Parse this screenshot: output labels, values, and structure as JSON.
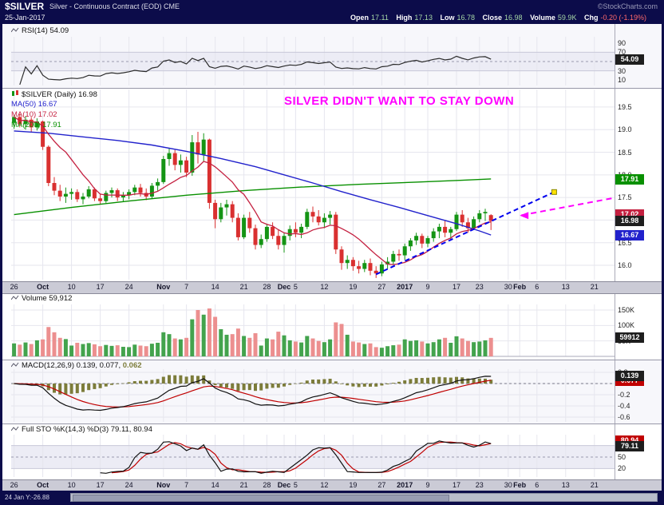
{
  "header": {
    "symbol": "$SILVER",
    "description": "Silver - Continuous Contract (EOD) CME",
    "credit": "©StockCharts.com",
    "date": "25-Jan-2017",
    "quote": {
      "open_label": "Open",
      "open": "17.11",
      "high_label": "High",
      "high": "17.13",
      "low_label": "Low",
      "low": "16.78",
      "close_label": "Close",
      "close": "16.98",
      "volume_label": "Volume",
      "volume": "59.9K",
      "chg_label": "Chg",
      "chg": "-0.20 (-1.19%)"
    }
  },
  "rsi": {
    "label": "RSI(14) 54.09",
    "value_box": "54.09"
  },
  "main": {
    "legend_symbol": "$SILVER (Daily) 16.98",
    "legend_ma50": "MA(50) 16.67",
    "legend_ma10": "MA(10) 17.02",
    "legend_ma200": "MA(200) 17.91",
    "annotation": "SILVER DIDN'T WANT TO STAY DOWN",
    "boxes": {
      "ma200": "17.91",
      "ma10": "17.02",
      "close": "16.98",
      "ma50": "16.67"
    }
  },
  "volume": {
    "label": "Volume 59,912",
    "value_box": "59912"
  },
  "macd": {
    "label_left": "MACD(12,26,9) 0.139, 0.077,",
    "label_hist": "0.062",
    "box_line": "0.139",
    "box_signal": "0.077"
  },
  "sto": {
    "label": "Full STO %K(14,3) %D(3) 79.11, 80.94",
    "box_k": "79.11",
    "box_d": "80.94"
  },
  "footer": {
    "readout": "24 Jan Y:-26.88"
  },
  "colors": {
    "navy": "#0C0C4A",
    "grid": "#E6E6EE",
    "band": "#ECECF5",
    "strip_bg": "#CBCBD6",
    "up": "#149414",
    "down": "#D93030",
    "vol_up": "#43A34D",
    "vol_down": "#EC8F8F",
    "ma10": "#C42040",
    "ma50": "#2222CC",
    "ma200": "#089000",
    "rsi": "#2B2B2B",
    "macd_line": "#111111",
    "macd_signal": "#C00000",
    "macd_hist": "#7C7C3A",
    "sto_k": "#111111",
    "sto_d": "#C00000",
    "trendline": "#0000EE",
    "handle": "#FFE000",
    "magenta": "#FF00FF",
    "box_dark": "#1E1E1E",
    "quote_value": "#A6D7A6",
    "quote_chg": "#FF6A6A"
  },
  "chart_data": {
    "type": "candlestick",
    "symbol": "$SILVER",
    "timeframe": "Daily",
    "title": "SILVER DIDN'T WANT TO STAY DOWN",
    "price_range": [
      15.7,
      19.85
    ],
    "axis_days_total": 105,
    "x_ticks": [
      {
        "label": "26",
        "day": 0,
        "bold": false
      },
      {
        "label": "Oct",
        "day": 5,
        "bold": true
      },
      {
        "label": "10",
        "day": 10,
        "bold": false
      },
      {
        "label": "17",
        "day": 15,
        "bold": false
      },
      {
        "label": "24",
        "day": 20,
        "bold": false
      },
      {
        "label": "Nov",
        "day": 26,
        "bold": true
      },
      {
        "label": "7",
        "day": 30,
        "bold": false
      },
      {
        "label": "14",
        "day": 35,
        "bold": false
      },
      {
        "label": "21",
        "day": 40,
        "bold": false
      },
      {
        "label": "28",
        "day": 44,
        "bold": false
      },
      {
        "label": "Dec",
        "day": 47,
        "bold": true
      },
      {
        "label": "5",
        "day": 49,
        "bold": false
      },
      {
        "label": "12",
        "day": 54,
        "bold": false
      },
      {
        "label": "19",
        "day": 59,
        "bold": false
      },
      {
        "label": "27",
        "day": 64,
        "bold": false
      },
      {
        "label": "2017",
        "day": 68,
        "bold": true
      },
      {
        "label": "9",
        "day": 72,
        "bold": false
      },
      {
        "label": "17",
        "day": 77,
        "bold": false
      },
      {
        "label": "23",
        "day": 81,
        "bold": false
      },
      {
        "label": "30",
        "day": 86,
        "bold": false
      },
      {
        "label": "Feb",
        "day": 88,
        "bold": true
      },
      {
        "label": "6",
        "day": 91,
        "bold": false
      },
      {
        "label": "13",
        "day": 96,
        "bold": false
      },
      {
        "label": "21",
        "day": 101,
        "bold": false
      }
    ],
    "price_ticks": [
      {
        "v": 19.5,
        "t": "19.5"
      },
      {
        "v": 19.0,
        "t": "19.0"
      },
      {
        "v": 18.5,
        "t": "18.5"
      },
      {
        "v": 18.0,
        "t": "18.0"
      },
      {
        "v": 17.5,
        "t": "17.5"
      },
      {
        "v": 17.0,
        "t": "17.0"
      },
      {
        "v": 16.5,
        "t": "16.5"
      },
      {
        "v": 16.0,
        "t": "16.0"
      }
    ],
    "rsi_ticks": [
      {
        "v": 90,
        "t": "90"
      },
      {
        "v": 70,
        "t": "70"
      },
      {
        "v": 50,
        "t": "50"
      },
      {
        "v": 30,
        "t": "30"
      },
      {
        "v": 10,
        "t": "10"
      }
    ],
    "vol_ticks": [
      {
        "v": 150,
        "t": "150K"
      },
      {
        "v": 100,
        "t": "100K"
      },
      {
        "v": 50,
        "t": "50K"
      }
    ],
    "macd_ticks": [
      {
        "v": 0.2,
        "t": "0.2"
      },
      {
        "v": 0.0,
        "t": "0.0"
      },
      {
        "v": -0.2,
        "t": "-0.2"
      },
      {
        "v": -0.4,
        "t": "-0.4"
      },
      {
        "v": -0.6,
        "t": "-0.6"
      }
    ],
    "sto_ticks": [
      {
        "v": 80,
        "t": "80"
      },
      {
        "v": 50,
        "t": "50"
      },
      {
        "v": 20,
        "t": "20"
      }
    ],
    "columns": [
      "date",
      "open",
      "high",
      "low",
      "close",
      "volume_k"
    ],
    "candles": [
      [
        "09-26",
        19.15,
        19.32,
        19.02,
        19.28,
        42
      ],
      [
        "09-27",
        19.28,
        19.35,
        19.05,
        19.12,
        38
      ],
      [
        "09-28",
        19.12,
        19.3,
        19.0,
        19.22,
        45
      ],
      [
        "09-29",
        19.22,
        19.28,
        18.95,
        19.05,
        40
      ],
      [
        "09-30",
        19.05,
        19.25,
        18.98,
        19.18,
        52
      ],
      [
        "10-03",
        19.18,
        19.2,
        18.55,
        18.62,
        55
      ],
      [
        "10-04",
        18.62,
        18.65,
        17.75,
        17.82,
        95
      ],
      [
        "10-05",
        17.82,
        17.95,
        17.55,
        17.65,
        78
      ],
      [
        "10-06",
        17.65,
        17.78,
        17.42,
        17.52,
        60
      ],
      [
        "10-07",
        17.52,
        17.72,
        17.38,
        17.58,
        56
      ],
      [
        "10-10",
        17.58,
        17.7,
        17.45,
        17.62,
        35
      ],
      [
        "10-11",
        17.62,
        17.68,
        17.4,
        17.46,
        44
      ],
      [
        "10-12",
        17.46,
        17.6,
        17.35,
        17.52,
        40
      ],
      [
        "10-13",
        17.52,
        17.75,
        17.48,
        17.68,
        43
      ],
      [
        "10-14",
        17.68,
        17.72,
        17.42,
        17.48,
        39
      ],
      [
        "10-17",
        17.48,
        17.58,
        17.35,
        17.42,
        33
      ],
      [
        "10-18",
        17.42,
        17.65,
        17.38,
        17.6,
        37
      ],
      [
        "10-19",
        17.6,
        17.72,
        17.5,
        17.66,
        34
      ],
      [
        "10-20",
        17.66,
        17.7,
        17.42,
        17.5,
        36
      ],
      [
        "10-21",
        17.5,
        17.62,
        17.4,
        17.55,
        31
      ],
      [
        "10-24",
        17.55,
        17.68,
        17.46,
        17.62,
        30
      ],
      [
        "10-25",
        17.62,
        17.78,
        17.55,
        17.72,
        38
      ],
      [
        "10-26",
        17.72,
        17.8,
        17.52,
        17.6,
        35
      ],
      [
        "10-27",
        17.6,
        17.7,
        17.44,
        17.52,
        33
      ],
      [
        "10-28",
        17.52,
        17.82,
        17.48,
        17.76,
        41
      ],
      [
        "10-31",
        17.76,
        17.92,
        17.65,
        17.84,
        44
      ],
      [
        "11-01",
        17.84,
        18.42,
        17.8,
        18.35,
        78
      ],
      [
        "11-02",
        18.35,
        18.6,
        18.2,
        18.48,
        72
      ],
      [
        "11-03",
        18.48,
        18.55,
        18.1,
        18.22,
        58
      ],
      [
        "11-04",
        18.22,
        18.45,
        18.05,
        18.32,
        55
      ],
      [
        "11-07",
        18.32,
        18.4,
        17.95,
        18.05,
        60
      ],
      [
        "11-08",
        18.05,
        18.88,
        17.98,
        18.72,
        120
      ],
      [
        "11-09",
        18.72,
        18.95,
        18.25,
        18.45,
        150
      ],
      [
        "11-10",
        18.45,
        18.92,
        18.3,
        18.78,
        135
      ],
      [
        "11-11",
        18.78,
        18.8,
        17.25,
        17.38,
        155
      ],
      [
        "11-14",
        17.38,
        17.45,
        16.82,
        17.02,
        128
      ],
      [
        "11-15",
        17.02,
        17.38,
        16.95,
        17.28,
        88
      ],
      [
        "11-16",
        17.28,
        17.45,
        17.1,
        17.35,
        70
      ],
      [
        "11-17",
        17.35,
        17.42,
        16.95,
        17.05,
        72
      ],
      [
        "11-18",
        17.05,
        17.15,
        16.55,
        16.62,
        90
      ],
      [
        "11-21",
        16.62,
        17.12,
        16.58,
        17.05,
        66
      ],
      [
        "11-22",
        17.05,
        17.18,
        16.72,
        16.82,
        60
      ],
      [
        "11-23",
        16.82,
        16.9,
        16.35,
        16.45,
        75
      ],
      [
        "11-25",
        16.45,
        16.68,
        16.38,
        16.58,
        35
      ],
      [
        "11-28",
        16.58,
        16.92,
        16.52,
        16.85,
        58
      ],
      [
        "11-29",
        16.85,
        16.95,
        16.58,
        16.65,
        55
      ],
      [
        "11-30",
        16.65,
        16.78,
        16.35,
        16.45,
        80
      ],
      [
        "12-01",
        16.45,
        16.72,
        16.28,
        16.65,
        68
      ],
      [
        "12-02",
        16.65,
        16.88,
        16.55,
        16.8,
        52
      ],
      [
        "12-05",
        16.8,
        16.95,
        16.62,
        16.72,
        48
      ],
      [
        "12-06",
        16.72,
        16.92,
        16.6,
        16.85,
        45
      ],
      [
        "12-07",
        16.85,
        17.25,
        16.8,
        17.18,
        66
      ],
      [
        "12-08",
        17.18,
        17.3,
        16.95,
        17.08,
        58
      ],
      [
        "12-09",
        17.08,
        17.22,
        16.88,
        16.95,
        50
      ],
      [
        "12-12",
        16.95,
        17.15,
        16.82,
        17.05,
        46
      ],
      [
        "12-13",
        17.05,
        17.2,
        16.9,
        17.12,
        55
      ],
      [
        "12-14",
        17.12,
        17.18,
        16.25,
        16.35,
        110
      ],
      [
        "12-15",
        16.35,
        16.42,
        15.9,
        16.05,
        105
      ],
      [
        "12-16",
        16.05,
        16.22,
        15.92,
        16.12,
        70
      ],
      [
        "12-19",
        16.12,
        16.18,
        15.88,
        15.98,
        48
      ],
      [
        "12-20",
        15.98,
        16.1,
        15.82,
        15.92,
        45
      ],
      [
        "12-21",
        15.92,
        16.12,
        15.85,
        16.05,
        40
      ],
      [
        "12-22",
        16.05,
        16.15,
        15.78,
        15.88,
        42
      ],
      [
        "12-23",
        15.88,
        15.98,
        15.72,
        15.82,
        30
      ],
      [
        "12-27",
        15.82,
        16.08,
        15.76,
        16.02,
        28
      ],
      [
        "12-28",
        16.02,
        16.18,
        15.92,
        16.08,
        33
      ],
      [
        "12-29",
        16.08,
        16.32,
        16.02,
        16.25,
        36
      ],
      [
        "12-30",
        16.25,
        16.35,
        16.1,
        16.22,
        38
      ],
      [
        "01-03",
        16.22,
        16.48,
        16.12,
        16.42,
        55
      ],
      [
        "01-04",
        16.42,
        16.6,
        16.32,
        16.55,
        50
      ],
      [
        "01-05",
        16.55,
        16.72,
        16.45,
        16.65,
        52
      ],
      [
        "01-06",
        16.65,
        16.7,
        16.38,
        16.48,
        48
      ],
      [
        "01-09",
        16.48,
        16.65,
        16.4,
        16.6,
        42
      ],
      [
        "01-10",
        16.6,
        16.82,
        16.52,
        16.75,
        46
      ],
      [
        "01-11",
        16.75,
        16.92,
        16.6,
        16.85,
        55
      ],
      [
        "01-12",
        16.85,
        16.98,
        16.62,
        16.72,
        60
      ],
      [
        "01-13",
        16.72,
        16.85,
        16.58,
        16.8,
        44
      ],
      [
        "01-17",
        16.8,
        17.18,
        16.76,
        17.12,
        65
      ],
      [
        "01-18",
        17.12,
        17.22,
        16.85,
        16.95,
        58
      ],
      [
        "01-19",
        16.95,
        17.05,
        16.72,
        16.82,
        50
      ],
      [
        "01-20",
        16.82,
        17.08,
        16.78,
        17.02,
        46
      ],
      [
        "01-23",
        17.02,
        17.22,
        16.95,
        17.15,
        48
      ],
      [
        "01-24",
        17.15,
        17.25,
        16.98,
        17.18,
        52
      ],
      [
        "01-25",
        17.11,
        17.13,
        16.78,
        16.98,
        59.9
      ]
    ],
    "overlays": {
      "ma200": [
        [
          0,
          17.12
        ],
        [
          10,
          17.28
        ],
        [
          20,
          17.42
        ],
        [
          30,
          17.55
        ],
        [
          40,
          17.65
        ],
        [
          50,
          17.73
        ],
        [
          60,
          17.79
        ],
        [
          70,
          17.84
        ],
        [
          78,
          17.88
        ],
        [
          83,
          17.91
        ]
      ],
      "ma50": [
        [
          0,
          18.97
        ],
        [
          6,
          18.92
        ],
        [
          12,
          18.84
        ],
        [
          18,
          18.76
        ],
        [
          24,
          18.66
        ],
        [
          30,
          18.52
        ],
        [
          36,
          18.36
        ],
        [
          42,
          18.18
        ],
        [
          47,
          18.0
        ],
        [
          52,
          17.82
        ],
        [
          57,
          17.63
        ],
        [
          62,
          17.45
        ],
        [
          67,
          17.28
        ],
        [
          72,
          17.1
        ],
        [
          77,
          16.92
        ],
        [
          81,
          16.76
        ],
        [
          83,
          16.67
        ]
      ]
    },
    "indicators": {
      "rsi_period": 14,
      "macd_params": [
        12,
        26,
        9
      ],
      "sto_params": "%K(14,3) %D(3)"
    },
    "annotations": {
      "text": "SILVER DIDN'T WANT TO STAY DOWN",
      "trendline": {
        "from": [
          63,
          15.8
        ],
        "to": [
          94,
          17.62
        ]
      },
      "arrow": {
        "from": [
          104,
          17.48
        ],
        "to": [
          88,
          17.1
        ]
      }
    }
  }
}
